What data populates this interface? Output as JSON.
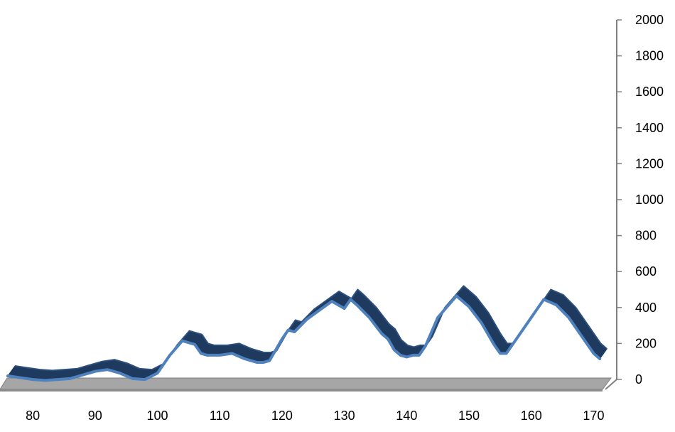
{
  "chart_data": {
    "type": "line",
    "style": "3d-ribbon",
    "title": "",
    "xlabel": "",
    "ylabel": "",
    "xlim": [
      76,
      172
    ],
    "ylim": [
      0,
      2000
    ],
    "x_ticks": [
      80,
      90,
      100,
      110,
      120,
      130,
      140,
      150,
      160,
      170
    ],
    "y_ticks": [
      0,
      200,
      400,
      600,
      800,
      1000,
      1200,
      1400,
      1600,
      1800,
      2000
    ],
    "legend": "none",
    "grid": false,
    "colors": {
      "ribbon_front": "#4f81bd",
      "ribbon_side": "#1f3a5f",
      "floor": "#a6a6a6",
      "axis": "#808080"
    },
    "series": [
      {
        "x": [
          76,
          78,
          80,
          82,
          84,
          86,
          88,
          90,
          92,
          94,
          96,
          98,
          100,
          102,
          104,
          106,
          107,
          108,
          110,
          112,
          114,
          116,
          117,
          118,
          120,
          121,
          122,
          124,
          126,
          128,
          129,
          130,
          131,
          132,
          134,
          136,
          137,
          138,
          139,
          140,
          141,
          142,
          143,
          144,
          145,
          146,
          148,
          150,
          152,
          154,
          155,
          156,
          158,
          160,
          161,
          162,
          164,
          166,
          167,
          168,
          170,
          171
        ],
        "y": [
          75,
          65,
          55,
          50,
          55,
          60,
          80,
          100,
          110,
          90,
          60,
          55,
          90,
          190,
          270,
          250,
          200,
          190,
          190,
          200,
          170,
          150,
          150,
          160,
          280,
          330,
          320,
          390,
          440,
          490,
          470,
          450,
          500,
          470,
          400,
          310,
          280,
          220,
          190,
          180,
          190,
          190,
          240,
          320,
          400,
          440,
          520,
          460,
          370,
          250,
          200,
          200,
          300,
          400,
          450,
          500,
          470,
          400,
          350,
          300,
          200,
          170
        ]
      }
    ]
  }
}
